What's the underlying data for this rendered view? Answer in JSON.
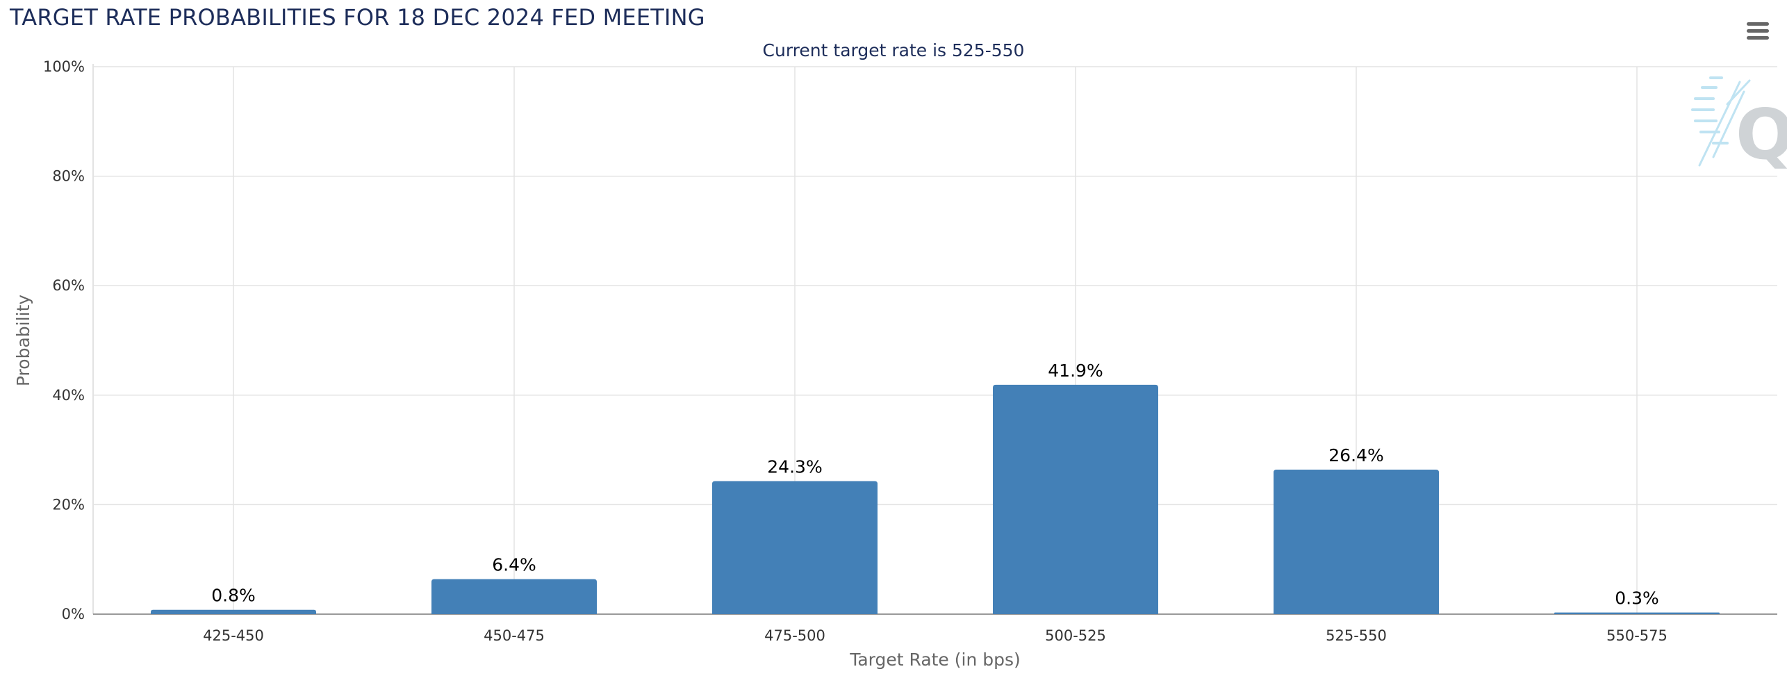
{
  "header": {
    "title": "TARGET RATE PROBABILITIES FOR 18 DEC 2024 FED MEETING",
    "subtitle": "Current target rate is 525-550"
  },
  "toolbar": {
    "menu_icon": "hamburger-menu-icon"
  },
  "watermark": {
    "letter": "Q"
  },
  "colors": {
    "bar": "#4380b7",
    "grid": "#e3e3e3",
    "axis": "#999999",
    "title": "#1d2d5a"
  },
  "chart_data": {
    "type": "bar",
    "title": "TARGET RATE PROBABILITIES FOR 18 DEC 2024 FED MEETING",
    "subtitle": "Current target rate is 525-550",
    "xlabel": "Target Rate (in bps)",
    "ylabel": "Probability",
    "categories": [
      "425-450",
      "450-475",
      "475-500",
      "500-525",
      "525-550",
      "550-575"
    ],
    "values": [
      0.8,
      6.4,
      24.3,
      41.9,
      26.4,
      0.3
    ],
    "data_labels": [
      "0.8%",
      "6.4%",
      "24.3%",
      "41.9%",
      "26.4%",
      "0.3%"
    ],
    "ylim": [
      0,
      100
    ],
    "yticks": [
      0,
      20,
      40,
      60,
      80,
      100
    ],
    "ytick_labels": [
      "0%",
      "20%",
      "40%",
      "60%",
      "80%",
      "100%"
    ],
    "grid": true,
    "legend": "none"
  }
}
